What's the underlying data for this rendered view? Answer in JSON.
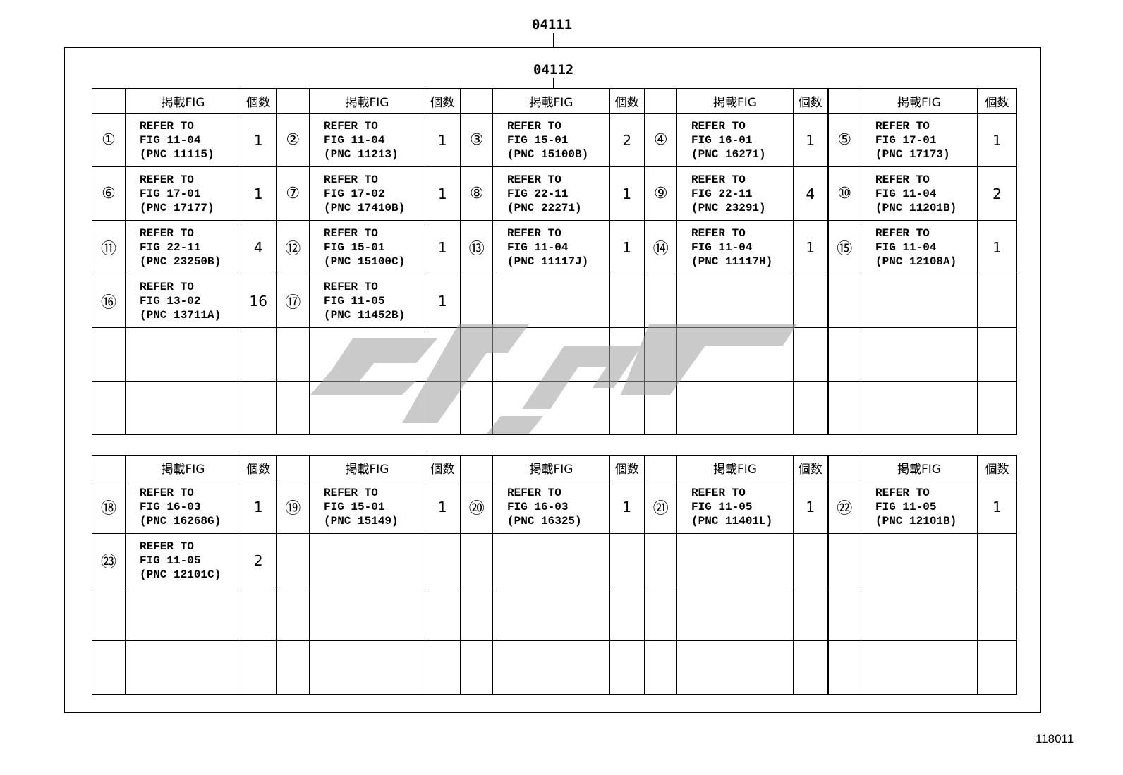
{
  "labels": {
    "outer_code": "04111",
    "inner_code": "04112",
    "footer_id": "118011"
  },
  "header": {
    "fig_label": "掲載FIG",
    "qty_label": "個数"
  },
  "watermark": {
    "color": "#a0a0a0"
  },
  "tables": [
    {
      "rows": [
        [
          {
            "num": "①",
            "l1": "REFER TO",
            "l2": "FIG 11-04",
            "l3": "(PNC 11115)",
            "qty": "1"
          },
          {
            "num": "②",
            "l1": "REFER TO",
            "l2": "FIG 11-04",
            "l3": "(PNC 11213)",
            "qty": "1"
          },
          {
            "num": "③",
            "l1": "REFER TO",
            "l2": "FIG 15-01",
            "l3": "(PNC 15100B)",
            "qty": "2"
          },
          {
            "num": "④",
            "l1": "REFER TO",
            "l2": "FIG 16-01",
            "l3": "(PNC 16271)",
            "qty": "1"
          },
          {
            "num": "⑤",
            "l1": "REFER TO",
            "l2": "FIG 17-01",
            "l3": "(PNC 17173)",
            "qty": "1"
          }
        ],
        [
          {
            "num": "⑥",
            "l1": "REFER TO",
            "l2": "FIG 17-01",
            "l3": "(PNC 17177)",
            "qty": "1"
          },
          {
            "num": "⑦",
            "l1": "REFER TO",
            "l2": "FIG 17-02",
            "l3": "(PNC 17410B)",
            "qty": "1"
          },
          {
            "num": "⑧",
            "l1": "REFER TO",
            "l2": "FIG 22-11",
            "l3": "(PNC 22271)",
            "qty": "1"
          },
          {
            "num": "⑨",
            "l1": "REFER TO",
            "l2": "FIG 22-11",
            "l3": "(PNC 23291)",
            "qty": "4"
          },
          {
            "num": "⑩",
            "l1": "REFER TO",
            "l2": "FIG 11-04",
            "l3": "(PNC 11201B)",
            "qty": "2"
          }
        ],
        [
          {
            "num": "⑪",
            "l1": "REFER TO",
            "l2": "FIG 22-11",
            "l3": "(PNC 23250B)",
            "qty": "4"
          },
          {
            "num": "⑫",
            "l1": "REFER TO",
            "l2": "FIG 15-01",
            "l3": "(PNC 15100C)",
            "qty": "1"
          },
          {
            "num": "⑬",
            "l1": "REFER TO",
            "l2": "FIG 11-04",
            "l3": "(PNC 11117J)",
            "qty": "1"
          },
          {
            "num": "⑭",
            "l1": "REFER TO",
            "l2": "FIG 11-04",
            "l3": "(PNC 11117H)",
            "qty": "1"
          },
          {
            "num": "⑮",
            "l1": "REFER TO",
            "l2": "FIG 11-04",
            "l3": "(PNC 12108A)",
            "qty": "1"
          }
        ],
        [
          {
            "num": "⑯",
            "l1": "REFER TO",
            "l2": "FIG 13-02",
            "l3": "(PNC 13711A)",
            "qty": "16"
          },
          {
            "num": "⑰",
            "l1": "REFER TO",
            "l2": "FIG 11-05",
            "l3": "(PNC 11452B)",
            "qty": "1"
          },
          null,
          null,
          null
        ],
        [
          null,
          null,
          null,
          null,
          null
        ],
        [
          null,
          null,
          null,
          null,
          null
        ]
      ]
    },
    {
      "rows": [
        [
          {
            "num": "⑱",
            "l1": "REFER TO",
            "l2": "FIG 16-03",
            "l3": "(PNC 16268G)",
            "qty": "1"
          },
          {
            "num": "⑲",
            "l1": "REFER TO",
            "l2": "FIG 15-01",
            "l3": "(PNC 15149)",
            "qty": "1"
          },
          {
            "num": "⑳",
            "l1": "REFER TO",
            "l2": "FIG 16-03",
            "l3": "(PNC 16325)",
            "qty": "1"
          },
          {
            "num": "㉑",
            "l1": "REFER TO",
            "l2": "FIG 11-05",
            "l3": "(PNC 11401L)",
            "qty": "1"
          },
          {
            "num": "㉒",
            "l1": "REFER TO",
            "l2": "FIG 11-05",
            "l3": "(PNC 12101B)",
            "qty": "1"
          }
        ],
        [
          {
            "num": "㉓",
            "l1": "REFER TO",
            "l2": "FIG 11-05",
            "l3": "(PNC 12101C)",
            "qty": "2"
          },
          null,
          null,
          null,
          null
        ],
        [
          null,
          null,
          null,
          null,
          null
        ],
        [
          null,
          null,
          null,
          null,
          null
        ]
      ]
    }
  ]
}
